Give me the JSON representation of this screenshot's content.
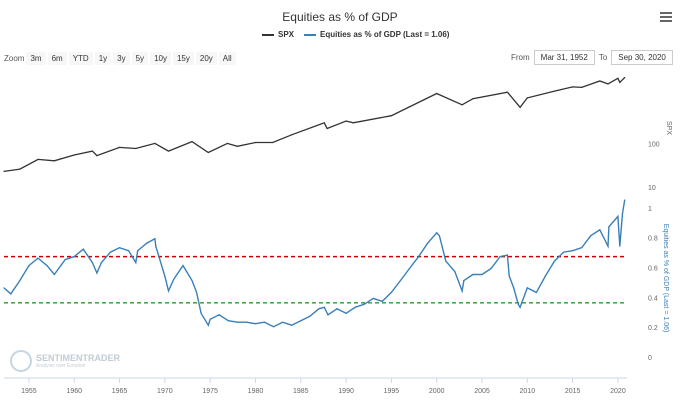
{
  "chart_data": {
    "type": "line",
    "title": "Equities as % of GDP",
    "legend": [
      {
        "name": "SPX",
        "color": "#333333"
      },
      {
        "name": "Equities as % of GDP (Last = 1.06)",
        "color": "#3a7fb8"
      }
    ],
    "zoom_label": "Zoom",
    "zoom_buttons": [
      "3m",
      "6m",
      "YTD",
      "1y",
      "3y",
      "5y",
      "10y",
      "15y",
      "20y",
      "All"
    ],
    "range": {
      "from_label": "From",
      "from": "Mar 31, 1952",
      "to_label": "To",
      "to": "Sep 30, 2020"
    },
    "x_ticks": [
      "1955",
      "1960",
      "1965",
      "1970",
      "1975",
      "1980",
      "1985",
      "1990",
      "1995",
      "2000",
      "2005",
      "2010",
      "2015",
      "2020"
    ],
    "x_range": [
      1952.25,
      2021
    ],
    "top_panel": {
      "series": "SPX",
      "scale": "log",
      "y_ticks": [
        "100",
        "10"
      ],
      "ylabel": "SPX",
      "ylim": [
        10,
        5000
      ],
      "x": [
        1952.25,
        1954,
        1956,
        1957.8,
        1960,
        1962,
        1962.5,
        1965,
        1966.8,
        1968.9,
        1970.4,
        1973,
        1974.8,
        1976.9,
        1978,
        1980,
        1981.9,
        1984,
        1987.6,
        1987.9,
        1990,
        1990.8,
        1995,
        2000,
        2002.8,
        2004,
        2007.8,
        2009.2,
        2010,
        2013,
        2015,
        2016,
        2018,
        2018.9,
        2020,
        2020.2,
        2020.75
      ],
      "values": [
        24,
        27,
        45,
        42,
        57,
        70,
        55,
        85,
        80,
        105,
        70,
        115,
        65,
        105,
        90,
        110,
        110,
        165,
        310,
        230,
        340,
        310,
        450,
        1450,
        800,
        1100,
        1550,
        700,
        1150,
        1650,
        2050,
        2000,
        2800,
        2400,
        3230,
        2600,
        3360
      ]
    },
    "bottom_panel": {
      "series": "Equities as % of GDP (Last = 1.06)",
      "ylabel": "Equities as % of GDP (Last = 1.06)",
      "y_ticks": [
        "0",
        "0.2",
        "0.4",
        "0.6",
        "0.8",
        "1"
      ],
      "ylim": [
        0,
        1.1
      ],
      "thresholds": [
        {
          "value": 0.68,
          "color": "#cc0000",
          "style": "dashed"
        },
        {
          "value": 0.37,
          "color": "#2a9a2a",
          "style": "dashed"
        }
      ],
      "x": [
        1952.25,
        1953,
        1954,
        1955,
        1956,
        1957,
        1957.8,
        1959,
        1960,
        1961,
        1962,
        1962.5,
        1963,
        1964,
        1965,
        1966,
        1966.8,
        1967,
        1968,
        1968.9,
        1969,
        1970,
        1970.4,
        1971,
        1972,
        1973,
        1973.5,
        1974,
        1974.8,
        1975,
        1976,
        1977,
        1978,
        1979,
        1980,
        1981,
        1982,
        1983,
        1984,
        1985,
        1986,
        1987,
        1987.6,
        1988,
        1989,
        1990,
        1991,
        1992,
        1993,
        1994,
        1995,
        1996,
        1997,
        1998,
        1999,
        2000,
        2000.3,
        2001,
        2002,
        2002.8,
        2003,
        2004,
        2005,
        2006,
        2007,
        2007.8,
        2008,
        2008.5,
        2009,
        2009.2,
        2010,
        2011,
        2012,
        2013,
        2014,
        2015,
        2016,
        2017,
        2018,
        2018.9,
        2019,
        2020,
        2020.2,
        2020.5,
        2020.75
      ],
      "values": [
        0.47,
        0.43,
        0.52,
        0.62,
        0.67,
        0.62,
        0.56,
        0.66,
        0.68,
        0.73,
        0.64,
        0.57,
        0.64,
        0.71,
        0.74,
        0.72,
        0.64,
        0.72,
        0.77,
        0.8,
        0.75,
        0.55,
        0.45,
        0.53,
        0.62,
        0.52,
        0.44,
        0.3,
        0.22,
        0.26,
        0.29,
        0.25,
        0.24,
        0.24,
        0.23,
        0.24,
        0.21,
        0.24,
        0.22,
        0.25,
        0.28,
        0.33,
        0.34,
        0.29,
        0.33,
        0.3,
        0.34,
        0.36,
        0.4,
        0.38,
        0.44,
        0.52,
        0.6,
        0.68,
        0.77,
        0.84,
        0.82,
        0.65,
        0.58,
        0.45,
        0.52,
        0.56,
        0.56,
        0.6,
        0.68,
        0.69,
        0.55,
        0.47,
        0.36,
        0.34,
        0.47,
        0.44,
        0.55,
        0.65,
        0.71,
        0.72,
        0.74,
        0.82,
        0.86,
        0.75,
        0.88,
        0.95,
        0.75,
        0.97,
        1.06
      ]
    },
    "watermark": {
      "brand": "SENTIMENTRADER",
      "tagline": "Analysis over Emotion"
    }
  }
}
